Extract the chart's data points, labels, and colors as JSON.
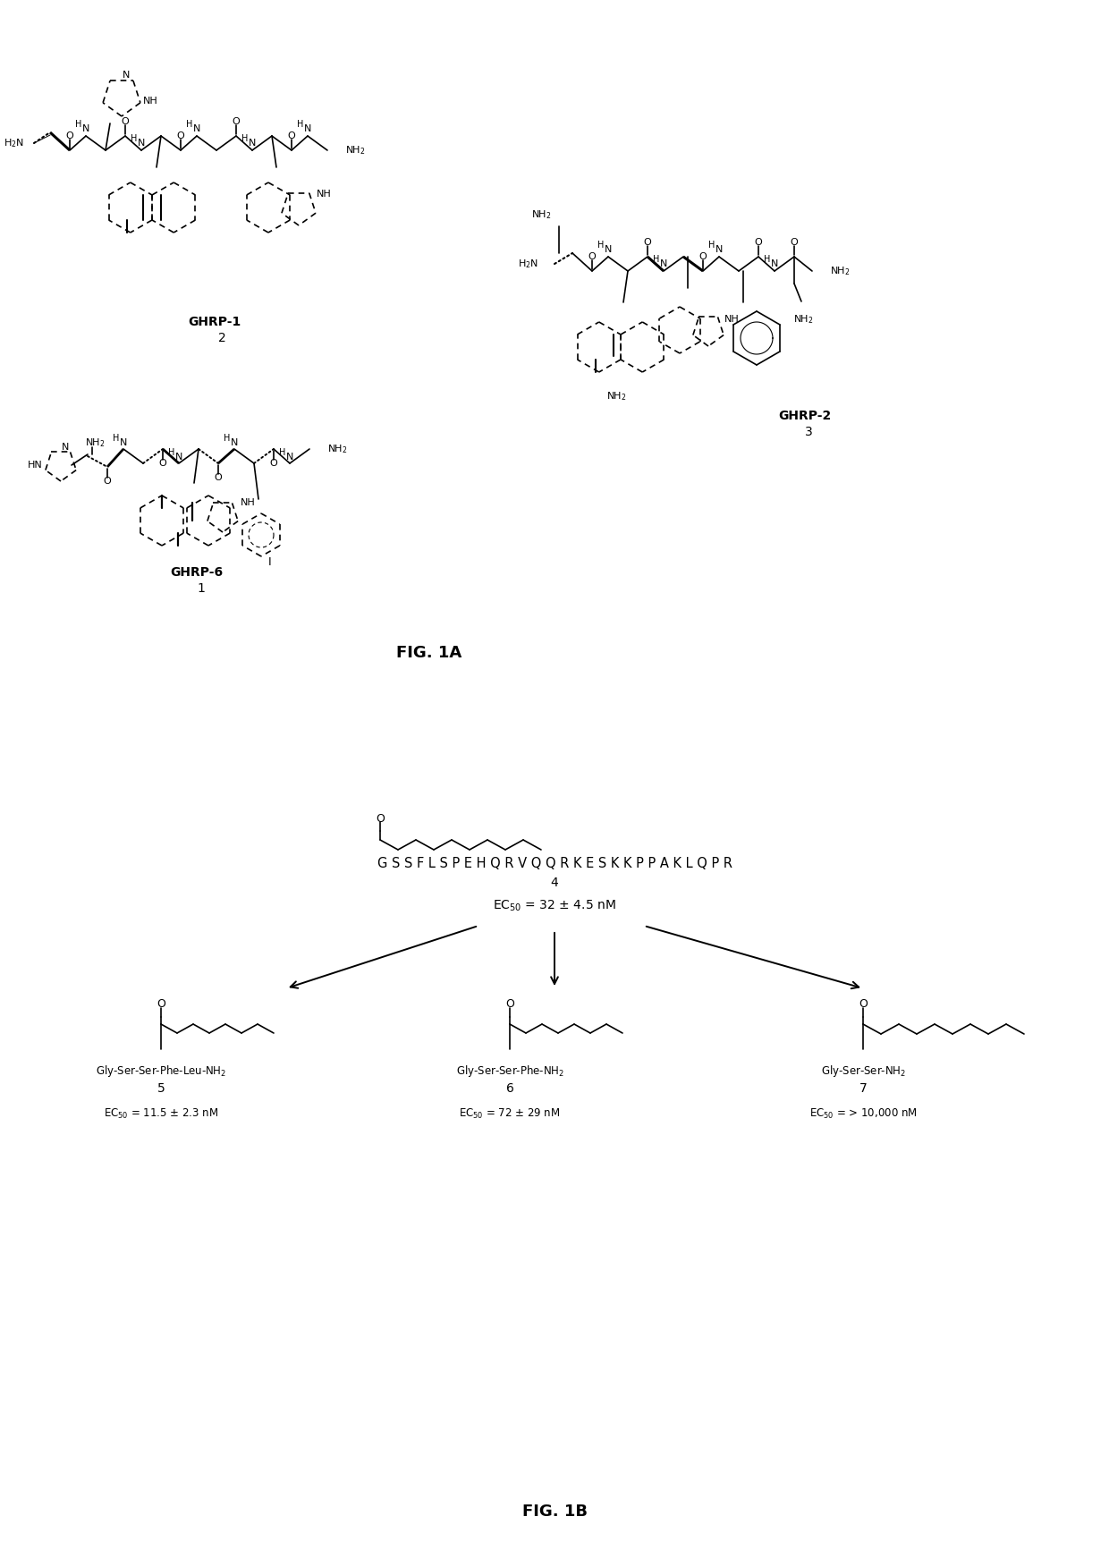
{
  "fig1a_label": "FIG. 1A",
  "fig1b_label": "FIG. 1B",
  "ghrp6_label": "GHRP-6",
  "ghrp6_number": "1",
  "ghrp1_label": "GHRP-1",
  "ghrp1_number": "2",
  "ghrp2_label": "GHRP-2",
  "ghrp2_number": "3",
  "compound4_sequence": "G S S F L S P E H Q R V Q Q R K E S K K P P A K L Q P R",
  "compound4_number": "4",
  "compound5_label": "Gly-Ser-Ser-Phe-Leu-NH$_2$",
  "compound5_number": "5",
  "compound6_label": "Gly-Ser-Ser-Phe-NH$_2$",
  "compound6_number": "6",
  "compound7_label": "Gly-Ser-Ser-NH$_2$",
  "compound7_number": "7",
  "bg_color": "#ffffff"
}
